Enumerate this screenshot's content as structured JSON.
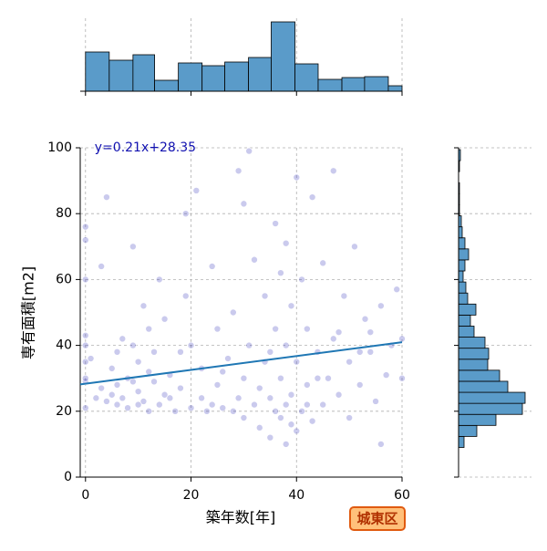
{
  "chart_data": [
    {
      "type": "scatter",
      "xlabel": "築年数[年]",
      "ylabel": "専有面積[m2]",
      "badge": "城東区",
      "color": "#2a2ab8",
      "xlim": [
        -1,
        60
      ],
      "ylim": [
        0,
        100
      ],
      "xticks": [
        0,
        20,
        40,
        60
      ],
      "yticks": [
        0,
        20,
        40,
        60,
        80,
        100
      ],
      "grid": true,
      "x": [
        0,
        0,
        0,
        0,
        0,
        0,
        0,
        0,
        0,
        4,
        3,
        5,
        6,
        6,
        7,
        8,
        8,
        9,
        9,
        10,
        10,
        11,
        11,
        12,
        12,
        13,
        13,
        14,
        14,
        15,
        15,
        16,
        17,
        18,
        19,
        19,
        20,
        20,
        21,
        22,
        22,
        23,
        24,
        25,
        25,
        26,
        27,
        28,
        29,
        29,
        30,
        30,
        30,
        31,
        31,
        32,
        32,
        33,
        33,
        34,
        34,
        35,
        35,
        36,
        36,
        37,
        37,
        37,
        38,
        38,
        38,
        38,
        39,
        39,
        40,
        40,
        40,
        41,
        41,
        42,
        42,
        43,
        43,
        44,
        45,
        45,
        46,
        47,
        47,
        48,
        49,
        50,
        50,
        51,
        52,
        53,
        54,
        55,
        56,
        56,
        57,
        58,
        59,
        60,
        60,
        2,
        3,
        5,
        7,
        9,
        1,
        4,
        6,
        10,
        12,
        16,
        18,
        24,
        26,
        28,
        36,
        39,
        35,
        42,
        44,
        48,
        52,
        54
      ],
      "values": [
        21,
        29,
        30,
        40,
        43,
        60,
        72,
        76,
        35,
        85,
        64,
        25,
        22,
        28,
        24,
        21,
        30,
        70,
        40,
        26,
        35,
        23,
        52,
        20,
        45,
        29,
        38,
        22,
        60,
        25,
        48,
        31,
        20,
        27,
        80,
        55,
        21,
        40,
        87,
        24,
        33,
        20,
        64,
        28,
        45,
        21,
        36,
        50,
        93,
        24,
        18,
        30,
        83,
        99,
        40,
        22,
        66,
        15,
        27,
        55,
        35,
        12,
        24,
        77,
        45,
        18,
        30,
        62,
        10,
        22,
        40,
        71,
        25,
        52,
        14,
        35,
        91,
        20,
        60,
        28,
        45,
        85,
        17,
        38,
        22,
        65,
        30,
        93,
        42,
        25,
        55,
        35,
        18,
        70,
        28,
        48,
        38,
        23,
        10,
        52,
        31,
        40,
        57,
        30,
        42,
        24,
        27,
        33,
        42,
        29,
        36,
        23,
        38,
        22,
        32,
        24,
        38,
        22,
        32,
        20,
        20,
        16,
        38,
        22,
        30,
        44,
        38,
        44
      ],
      "fit": {
        "label": "y=0.21x+28.35",
        "color": "#1f77b4",
        "label_color": "#1010b0",
        "x": [
          -1,
          60
        ],
        "y": [
          28.14,
          40.95
        ]
      }
    },
    {
      "type": "histogram",
      "orientation": "vertical",
      "color": "#5a9bc9",
      "bins": [
        0,
        4.5,
        9.0,
        13.1,
        17.6,
        22.1,
        26.4,
        30.9,
        35.2,
        39.7,
        44.1,
        48.6,
        52.9,
        57.4,
        60
      ],
      "values": [
        43,
        34,
        40,
        12,
        31,
        28,
        32,
        37,
        76,
        30,
        13,
        15,
        16,
        6
      ],
      "ylim": [
        0,
        80
      ],
      "xticks": [
        0,
        20,
        40,
        60
      ]
    },
    {
      "type": "histogram",
      "orientation": "horizontal",
      "color": "#5a9bc9",
      "bins": [
        9,
        12.35,
        15.7,
        19.05,
        22.4,
        25.75,
        29.1,
        32.45,
        35.8,
        39.15,
        42.5,
        45.85,
        49.2,
        52.55,
        55.9,
        59.25,
        62.6,
        65.95,
        69.3,
        72.65,
        76,
        79.35,
        82.7,
        86.05,
        89.4,
        92.75,
        96.1,
        99.45
      ],
      "values": [
        6,
        20,
        41,
        70,
        73,
        54,
        45,
        32,
        33,
        29,
        17,
        13,
        19,
        10,
        8,
        5,
        7,
        11,
        7,
        4,
        3,
        1,
        1,
        1,
        0,
        1,
        2
      ],
      "xlim": [
        0,
        80
      ],
      "yticks": [
        0,
        20,
        40,
        60,
        80,
        100
      ]
    }
  ]
}
